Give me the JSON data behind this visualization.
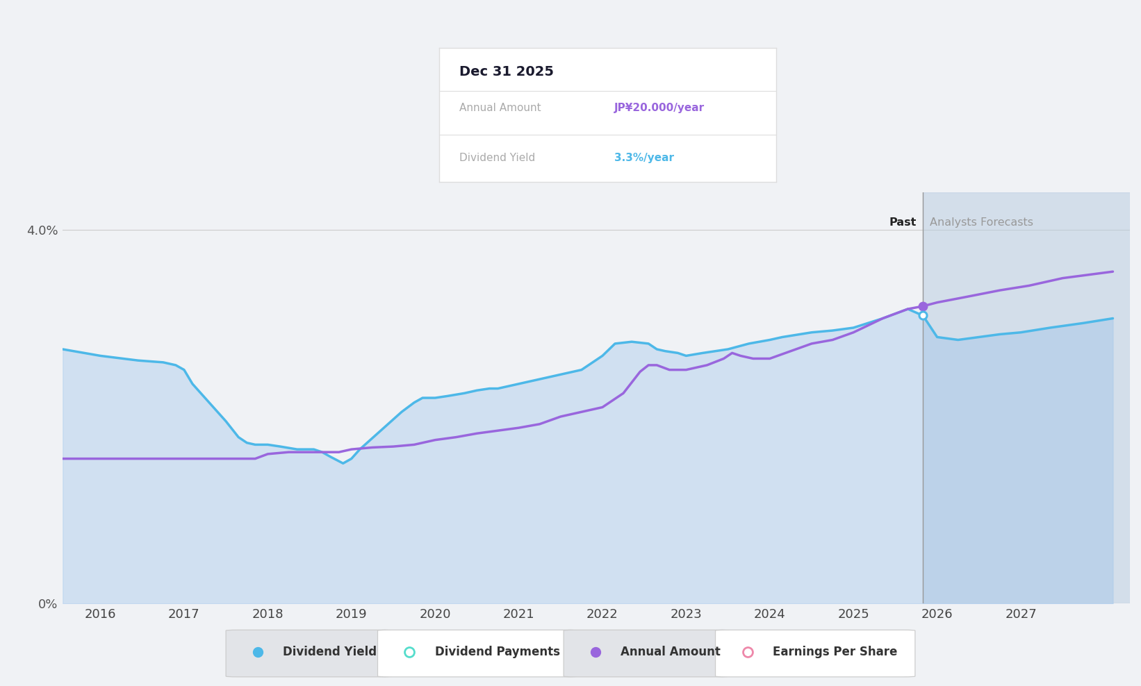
{
  "background_color": "#f0f2f5",
  "plot_bg_color": "#f0f2f5",
  "ylim": [
    0,
    4.4
  ],
  "xlim": [
    2015.55,
    2028.3
  ],
  "xticks": [
    2016,
    2017,
    2018,
    2019,
    2020,
    2021,
    2022,
    2023,
    2024,
    2025,
    2026,
    2027
  ],
  "past_line_x": 2025.83,
  "forecast_region_end": 2028.3,
  "dividend_yield": {
    "x": [
      2015.55,
      2016.0,
      2016.45,
      2016.75,
      2016.9,
      2017.0,
      2017.1,
      2017.35,
      2017.5,
      2017.65,
      2017.75,
      2017.85,
      2018.0,
      2018.15,
      2018.35,
      2018.55,
      2018.65,
      2018.75,
      2018.9,
      2019.0,
      2019.1,
      2019.35,
      2019.6,
      2019.75,
      2019.85,
      2020.0,
      2020.15,
      2020.35,
      2020.5,
      2020.65,
      2020.75,
      2020.85,
      2021.0,
      2021.15,
      2021.35,
      2021.5,
      2021.65,
      2021.75,
      2022.0,
      2022.15,
      2022.35,
      2022.55,
      2022.65,
      2022.75,
      2022.9,
      2023.0,
      2023.2,
      2023.5,
      2023.75,
      2024.0,
      2024.15,
      2024.5,
      2024.75,
      2025.0,
      2025.35,
      2025.65,
      2025.83,
      2026.0,
      2026.25,
      2026.5,
      2026.75,
      2027.0,
      2027.35,
      2027.75,
      2028.1
    ],
    "y": [
      2.72,
      2.65,
      2.6,
      2.58,
      2.55,
      2.5,
      2.35,
      2.1,
      1.95,
      1.78,
      1.72,
      1.7,
      1.7,
      1.68,
      1.65,
      1.65,
      1.62,
      1.57,
      1.5,
      1.55,
      1.65,
      1.85,
      2.05,
      2.15,
      2.2,
      2.2,
      2.22,
      2.25,
      2.28,
      2.3,
      2.3,
      2.32,
      2.35,
      2.38,
      2.42,
      2.45,
      2.48,
      2.5,
      2.65,
      2.78,
      2.8,
      2.78,
      2.72,
      2.7,
      2.68,
      2.65,
      2.68,
      2.72,
      2.78,
      2.82,
      2.85,
      2.9,
      2.92,
      2.95,
      3.05,
      3.15,
      3.08,
      2.85,
      2.82,
      2.85,
      2.88,
      2.9,
      2.95,
      3.0,
      3.05
    ],
    "color": "#4db8e8",
    "linewidth": 2.5
  },
  "annual_amount": {
    "x": [
      2015.55,
      2016.0,
      2016.5,
      2016.9,
      2017.0,
      2017.5,
      2017.85,
      2018.0,
      2018.25,
      2018.5,
      2018.75,
      2018.85,
      2019.0,
      2019.25,
      2019.5,
      2019.75,
      2020.0,
      2020.25,
      2020.5,
      2020.75,
      2021.0,
      2021.25,
      2021.5,
      2021.75,
      2022.0,
      2022.25,
      2022.45,
      2022.55,
      2022.65,
      2022.8,
      2023.0,
      2023.25,
      2023.45,
      2023.55,
      2023.65,
      2023.8,
      2024.0,
      2024.25,
      2024.5,
      2024.75,
      2025.0,
      2025.35,
      2025.65,
      2025.83,
      2026.0,
      2026.35,
      2026.75,
      2027.1,
      2027.5,
      2028.1
    ],
    "y": [
      1.55,
      1.55,
      1.55,
      1.55,
      1.55,
      1.55,
      1.55,
      1.6,
      1.62,
      1.62,
      1.62,
      1.62,
      1.65,
      1.67,
      1.68,
      1.7,
      1.75,
      1.78,
      1.82,
      1.85,
      1.88,
      1.92,
      2.0,
      2.05,
      2.1,
      2.25,
      2.48,
      2.55,
      2.55,
      2.5,
      2.5,
      2.55,
      2.62,
      2.68,
      2.65,
      2.62,
      2.62,
      2.7,
      2.78,
      2.82,
      2.9,
      3.05,
      3.15,
      3.18,
      3.22,
      3.28,
      3.35,
      3.4,
      3.48,
      3.55
    ],
    "color": "#9966dd",
    "linewidth": 2.5
  },
  "fill_color": "#aaccee",
  "fill_alpha": 0.45,
  "forecast_band_color": "#b8cce0",
  "forecast_band_alpha": 0.5,
  "past_label": "Past",
  "forecast_label": "Analysts Forecasts",
  "tooltip": {
    "title": "Dec 31 2025",
    "row1_label": "Annual Amount",
    "row1_value": "JP¥20.000/year",
    "row1_color": "#9966dd",
    "row2_label": "Dividend Yield",
    "row2_value": "3.3%/year",
    "row2_color": "#4db8e8"
  },
  "legend_items": [
    {
      "label": "Dividend Yield",
      "color": "#4db8e8",
      "filled": true
    },
    {
      "label": "Dividend Payments",
      "color": "#55ddcc",
      "filled": false
    },
    {
      "label": "Annual Amount",
      "color": "#9966dd",
      "filled": true
    },
    {
      "label": "Earnings Per Share",
      "color": "#ee88aa",
      "filled": false
    }
  ],
  "highlight_point_x": 2025.83,
  "highlight_point_annual_y": 3.18,
  "highlight_point_yield_y": 3.08
}
